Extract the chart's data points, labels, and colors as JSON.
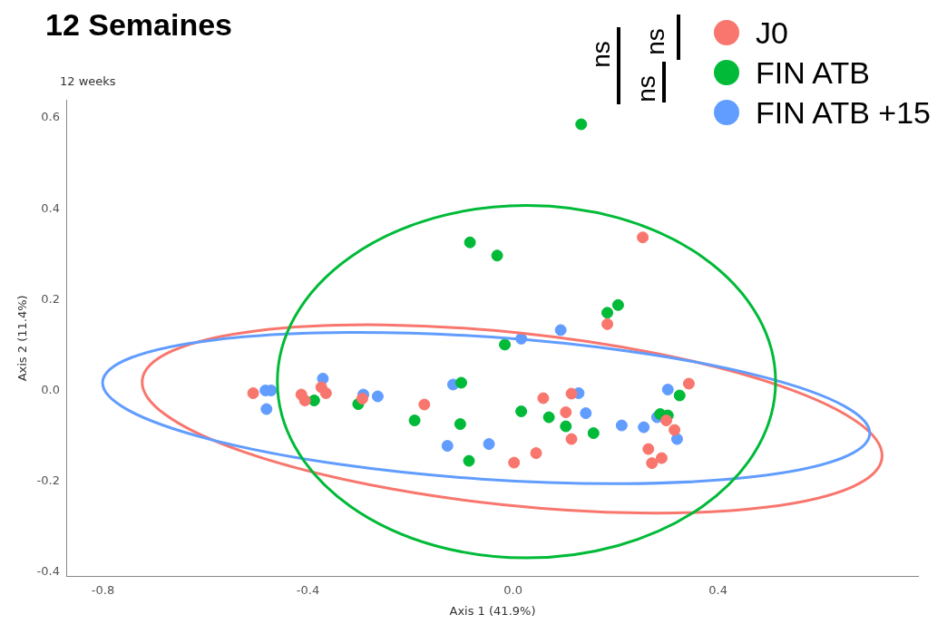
{
  "chart_data": {
    "type": "scatter",
    "title": "12 Semaines",
    "subtitle": "12 weeks",
    "xlabel": "Axis 1 (41.9%)",
    "ylabel": "Axis 2 (11.4%)",
    "xlim": [
      -0.87,
      0.79
    ],
    "ylim": [
      -0.41,
      0.64
    ],
    "xticks": [
      -0.8,
      -0.4,
      {
        "value": 0,
        "label": "0.0"
      },
      0.4
    ],
    "yticks": [
      -0.4,
      -0.2,
      {
        "value": 0,
        "label": "0.0"
      },
      0.2,
      0.4,
      0.6
    ],
    "grid": false,
    "legend": "top right",
    "marker": "circle",
    "annotations": [
      "ns",
      "ns",
      "ns"
    ],
    "series": [
      {
        "name": "J0",
        "color": "#f8766d",
        "x": [
          -0.507,
          -0.413,
          -0.406,
          -0.374,
          -0.365,
          -0.294,
          -0.173,
          0.059,
          0.114,
          0.103,
          0.114,
          0.045,
          0.002,
          0.184,
          0.253,
          0.343,
          0.299,
          0.315,
          0.264,
          0.29,
          0.271
        ],
        "values": [
          -0.006,
          -0.009,
          -0.022,
          0.007,
          -0.006,
          -0.018,
          -0.031,
          -0.017,
          -0.007,
          -0.048,
          -0.107,
          -0.138,
          -0.159,
          0.146,
          0.337,
          0.015,
          -0.066,
          -0.087,
          -0.129,
          -0.149,
          -0.16
        ]
      },
      {
        "name": "FIN ATB",
        "color": "#00ba38",
        "x": [
          0.133,
          -0.084,
          -0.031,
          0.184,
          0.205,
          -0.016,
          -0.101,
          -0.192,
          -0.103,
          -0.086,
          0.016,
          0.07,
          0.103,
          0.157,
          0.287,
          0.302,
          0.325,
          -0.388,
          -0.302
        ],
        "values": [
          0.586,
          0.326,
          0.297,
          0.171,
          0.188,
          0.101,
          0.017,
          -0.066,
          -0.074,
          -0.155,
          -0.046,
          -0.059,
          -0.079,
          -0.094,
          -0.052,
          -0.055,
          -0.011,
          -0.022,
          -0.03
        ]
      },
      {
        "name": "FIN ATB +15",
        "color": "#619cff",
        "x": [
          -0.483,
          -0.472,
          -0.481,
          -0.371,
          -0.292,
          -0.264,
          -0.117,
          0.016,
          0.093,
          0.128,
          0.142,
          -0.128,
          -0.047,
          0.212,
          0.255,
          0.281,
          0.302,
          0.32
        ],
        "values": [
          0,
          0,
          -0.041,
          0.026,
          -0.009,
          -0.013,
          0.013,
          0.114,
          0.133,
          -0.006,
          -0.05,
          -0.122,
          -0.118,
          -0.077,
          -0.081,
          -0.059,
          0.002,
          -0.107
        ]
      }
    ]
  }
}
